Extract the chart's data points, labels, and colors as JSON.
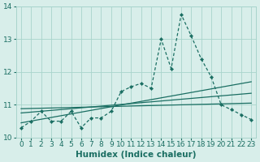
{
  "xlabel": "Humidex (Indice chaleur)",
  "x": [
    0,
    1,
    2,
    3,
    4,
    5,
    6,
    7,
    8,
    9,
    10,
    11,
    12,
    13,
    14,
    15,
    16,
    17,
    18,
    19,
    20,
    21,
    22,
    23
  ],
  "y_main": [
    10.3,
    10.5,
    10.8,
    10.5,
    10.5,
    10.8,
    10.3,
    10.6,
    10.6,
    10.8,
    11.4,
    11.55,
    11.65,
    11.5,
    13.0,
    12.1,
    13.75,
    13.1,
    12.4,
    11.85,
    11.0,
    10.85,
    10.7,
    10.55
  ],
  "trend1_x": [
    0,
    23
  ],
  "trend1_y": [
    10.45,
    11.7
  ],
  "trend2_x": [
    0,
    23
  ],
  "trend2_y": [
    10.75,
    11.35
  ],
  "trend3_x": [
    0,
    23
  ],
  "trend3_y": [
    10.88,
    11.05
  ],
  "bg_color": "#d8eeea",
  "grid_color": "#a8d4cc",
  "line_color": "#1a6e62",
  "ylim": [
    10.0,
    14.0
  ],
  "xlim": [
    -0.5,
    23.5
  ],
  "yticks": [
    10,
    11,
    12,
    13,
    14
  ],
  "xticks": [
    0,
    1,
    2,
    3,
    4,
    5,
    6,
    7,
    8,
    9,
    10,
    11,
    12,
    13,
    14,
    15,
    16,
    17,
    18,
    19,
    20,
    21,
    22,
    23
  ],
  "tick_fontsize": 6.5,
  "xlabel_fontsize": 7.5
}
